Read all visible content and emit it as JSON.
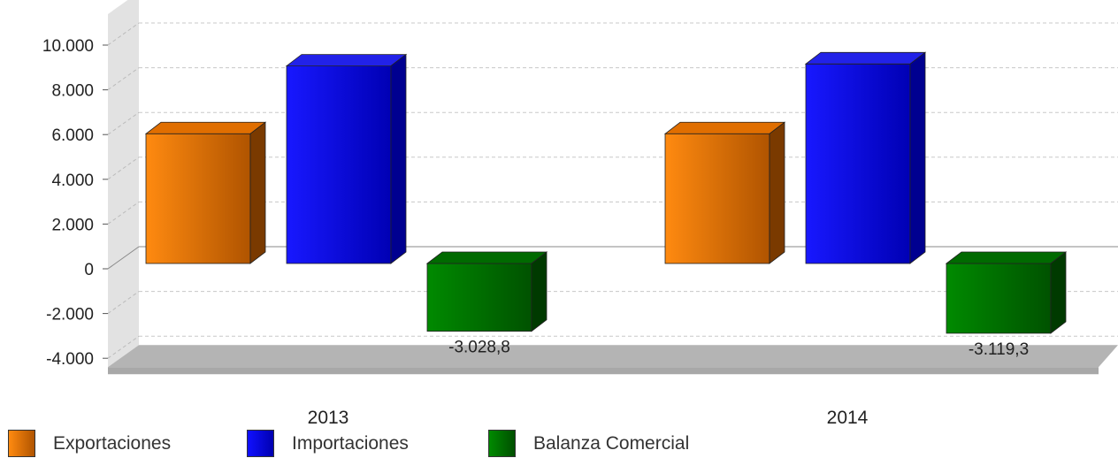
{
  "chart_data": {
    "type": "bar",
    "categories": [
      "2013",
      "2014"
    ],
    "series": [
      {
        "name": "Exportaciones",
        "values": [
          5800,
          5800
        ],
        "color": "#f07a00"
      },
      {
        "name": "Importaciones",
        "values": [
          8830,
          8920
        ],
        "color": "#0000ee"
      },
      {
        "name": "Balanza Comercial",
        "values": [
          -3028.8,
          -3119.3
        ],
        "color": "#007300"
      }
    ],
    "data_labels": {
      "Balanza Comercial": [
        "-3.028,8",
        "-3.119,3"
      ]
    },
    "y_ticks": [
      "10.000",
      "8.000",
      "6.000",
      "4.000",
      "2.000",
      "0",
      "-2.000",
      "-4.000"
    ],
    "y_tick_values": [
      10000,
      8000,
      6000,
      4000,
      2000,
      0,
      -2000,
      -4000
    ],
    "ylim": [
      -4000,
      10000
    ],
    "grid": true,
    "legend_position": "bottom",
    "style": "3d"
  }
}
